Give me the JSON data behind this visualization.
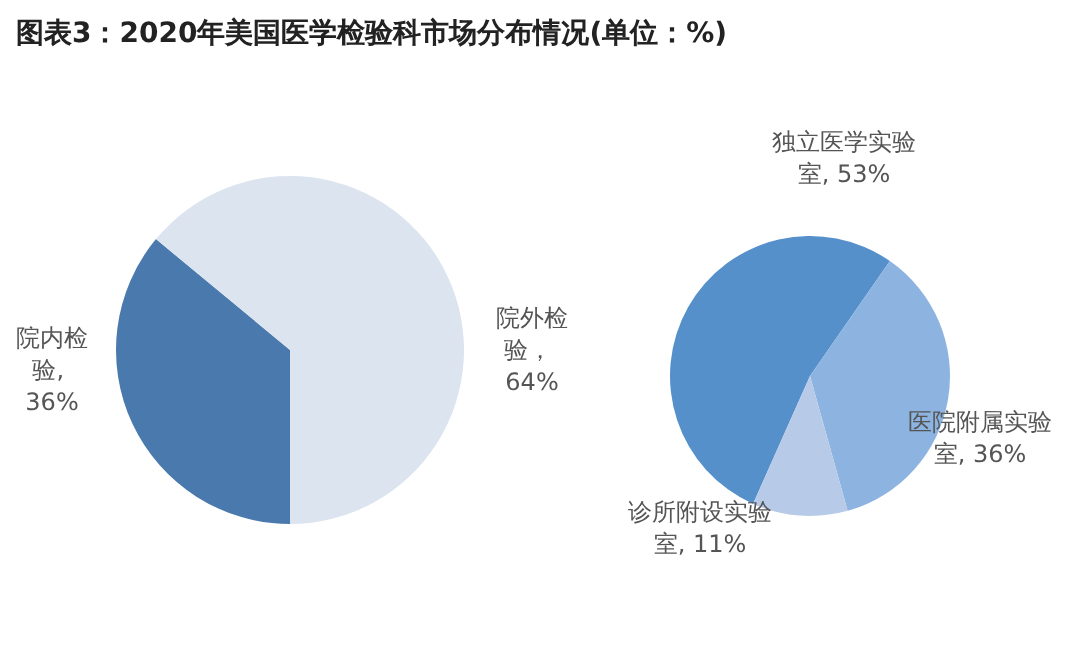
{
  "chart_data": [
    {
      "type": "pie",
      "title": "图表3：2020年美国医学检验科市场分布情况(单位：%)",
      "categories": [
        "院内检验",
        "院外检验"
      ],
      "values": [
        36,
        64
      ],
      "colors": [
        "#4a7aad",
        "#dce4f0"
      ],
      "value_labels": [
        ", 36%",
        "， 64%"
      ]
    },
    {
      "type": "pie",
      "categories": [
        "独立医学实验室",
        "医院附属实验室",
        "诊所附设实验室"
      ],
      "values": [
        53,
        36,
        11
      ],
      "colors": [
        "#5590cb",
        "#8db4e0",
        "#b7cbe8"
      ],
      "value_labels": [
        ", 53%",
        ", 36%",
        ", 11%"
      ]
    }
  ]
}
